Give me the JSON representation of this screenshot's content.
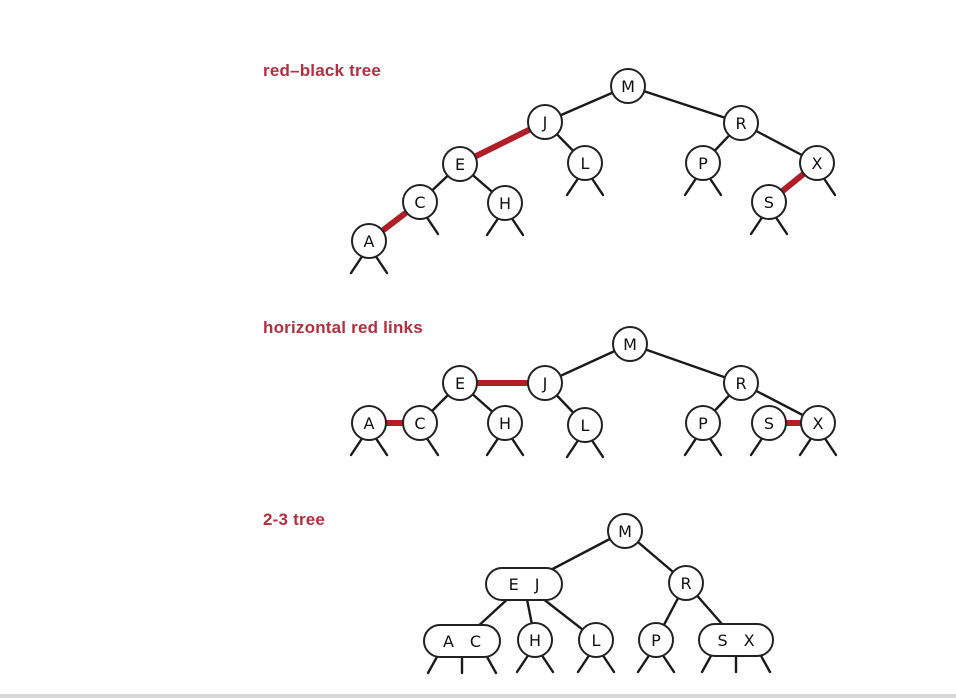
{
  "sections": [
    {
      "id": "rb",
      "title": "red–black tree",
      "nodes": [
        {
          "id": "M",
          "label": "M"
        },
        {
          "id": "J",
          "label": "J"
        },
        {
          "id": "R",
          "label": "R"
        },
        {
          "id": "E",
          "label": "E"
        },
        {
          "id": "L",
          "label": "L"
        },
        {
          "id": "P",
          "label": "P"
        },
        {
          "id": "X",
          "label": "X"
        },
        {
          "id": "C",
          "label": "C"
        },
        {
          "id": "H",
          "label": "H"
        },
        {
          "id": "S",
          "label": "S"
        },
        {
          "id": "A",
          "label": "A"
        }
      ],
      "links": [
        {
          "from": "M",
          "to": "J",
          "color": "black"
        },
        {
          "from": "M",
          "to": "R",
          "color": "black"
        },
        {
          "from": "J",
          "to": "E",
          "color": "red"
        },
        {
          "from": "J",
          "to": "L",
          "color": "black"
        },
        {
          "from": "E",
          "to": "C",
          "color": "black"
        },
        {
          "from": "E",
          "to": "H",
          "color": "black"
        },
        {
          "from": "C",
          "to": "A",
          "color": "red"
        },
        {
          "from": "R",
          "to": "P",
          "color": "black"
        },
        {
          "from": "R",
          "to": "X",
          "color": "black"
        },
        {
          "from": "X",
          "to": "S",
          "color": "red"
        }
      ]
    },
    {
      "id": "hz",
      "title": "horizontal red links",
      "nodes": [
        {
          "id": "M",
          "label": "M"
        },
        {
          "id": "E",
          "label": "E"
        },
        {
          "id": "J",
          "label": "J"
        },
        {
          "id": "R",
          "label": "R"
        },
        {
          "id": "A",
          "label": "A"
        },
        {
          "id": "C",
          "label": "C"
        },
        {
          "id": "H",
          "label": "H"
        },
        {
          "id": "L",
          "label": "L"
        },
        {
          "id": "P",
          "label": "P"
        },
        {
          "id": "S",
          "label": "S"
        },
        {
          "id": "X",
          "label": "X"
        }
      ],
      "links": [
        {
          "from": "M",
          "to": "J",
          "color": "black"
        },
        {
          "from": "M",
          "to": "R",
          "color": "black"
        },
        {
          "from": "E",
          "to": "J",
          "color": "red"
        },
        {
          "from": "J",
          "to": "L",
          "color": "black"
        },
        {
          "from": "E",
          "to": "C",
          "color": "black"
        },
        {
          "from": "E",
          "to": "H",
          "color": "black"
        },
        {
          "from": "A",
          "to": "C",
          "color": "red"
        },
        {
          "from": "R",
          "to": "P",
          "color": "black"
        },
        {
          "from": "R",
          "to": "X",
          "color": "black"
        },
        {
          "from": "S",
          "to": "X",
          "color": "red"
        }
      ]
    },
    {
      "id": "tt",
      "title": "2-3 tree",
      "nodes": [
        {
          "id": "M",
          "label": "M"
        },
        {
          "id": "EJ",
          "label": "E J"
        },
        {
          "id": "R",
          "label": "R"
        },
        {
          "id": "AC",
          "label": "A C"
        },
        {
          "id": "H",
          "label": "H"
        },
        {
          "id": "L",
          "label": "L"
        },
        {
          "id": "P",
          "label": "P"
        },
        {
          "id": "SX",
          "label": "S X"
        }
      ],
      "links": [
        {
          "from": "M",
          "to": "EJ",
          "color": "black"
        },
        {
          "from": "M",
          "to": "R",
          "color": "black"
        },
        {
          "from": "EJ",
          "to": "AC",
          "color": "black"
        },
        {
          "from": "EJ",
          "to": "H",
          "color": "black"
        },
        {
          "from": "EJ",
          "to": "L",
          "color": "black"
        },
        {
          "from": "R",
          "to": "P",
          "color": "black"
        },
        {
          "from": "R",
          "to": "SX",
          "color": "black"
        }
      ]
    }
  ],
  "colors": {
    "title": "#b03040",
    "red_link": "#b01e28",
    "black_link": "#1a1a1a",
    "node_fill": "#ffffff",
    "node_stroke": "#222222"
  }
}
